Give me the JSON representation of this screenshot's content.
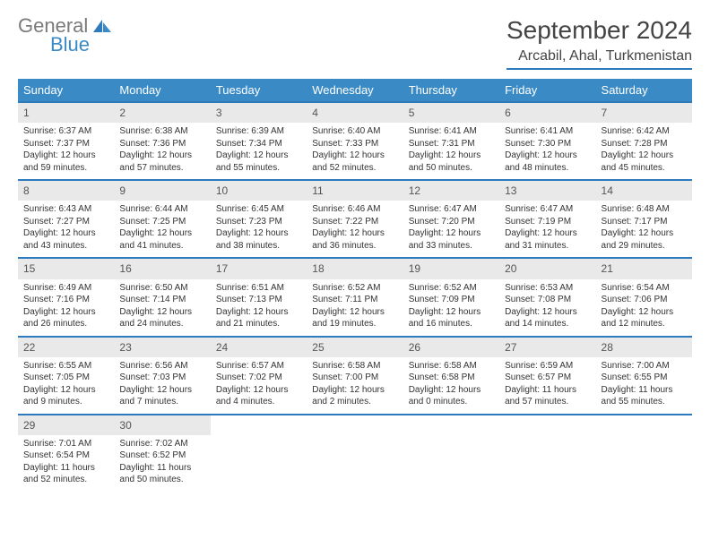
{
  "logo": {
    "line1": "General",
    "line2": "Blue"
  },
  "header": {
    "title": "September 2024",
    "location": "Arcabil, Ahal, Turkmenistan"
  },
  "colors": {
    "brand_blue": "#3a8ac6",
    "rule_blue": "#2d7bbd",
    "day_num_bg": "#e9e9e9",
    "text_gray": "#7a7a7a",
    "body_text": "#333333"
  },
  "weekdays": [
    "Sunday",
    "Monday",
    "Tuesday",
    "Wednesday",
    "Thursday",
    "Friday",
    "Saturday"
  ],
  "days": [
    {
      "n": "1",
      "sunrise": "6:37 AM",
      "sunset": "7:37 PM",
      "daylight": "12 hours and 59 minutes."
    },
    {
      "n": "2",
      "sunrise": "6:38 AM",
      "sunset": "7:36 PM",
      "daylight": "12 hours and 57 minutes."
    },
    {
      "n": "3",
      "sunrise": "6:39 AM",
      "sunset": "7:34 PM",
      "daylight": "12 hours and 55 minutes."
    },
    {
      "n": "4",
      "sunrise": "6:40 AM",
      "sunset": "7:33 PM",
      "daylight": "12 hours and 52 minutes."
    },
    {
      "n": "5",
      "sunrise": "6:41 AM",
      "sunset": "7:31 PM",
      "daylight": "12 hours and 50 minutes."
    },
    {
      "n": "6",
      "sunrise": "6:41 AM",
      "sunset": "7:30 PM",
      "daylight": "12 hours and 48 minutes."
    },
    {
      "n": "7",
      "sunrise": "6:42 AM",
      "sunset": "7:28 PM",
      "daylight": "12 hours and 45 minutes."
    },
    {
      "n": "8",
      "sunrise": "6:43 AM",
      "sunset": "7:27 PM",
      "daylight": "12 hours and 43 minutes."
    },
    {
      "n": "9",
      "sunrise": "6:44 AM",
      "sunset": "7:25 PM",
      "daylight": "12 hours and 41 minutes."
    },
    {
      "n": "10",
      "sunrise": "6:45 AM",
      "sunset": "7:23 PM",
      "daylight": "12 hours and 38 minutes."
    },
    {
      "n": "11",
      "sunrise": "6:46 AM",
      "sunset": "7:22 PM",
      "daylight": "12 hours and 36 minutes."
    },
    {
      "n": "12",
      "sunrise": "6:47 AM",
      "sunset": "7:20 PM",
      "daylight": "12 hours and 33 minutes."
    },
    {
      "n": "13",
      "sunrise": "6:47 AM",
      "sunset": "7:19 PM",
      "daylight": "12 hours and 31 minutes."
    },
    {
      "n": "14",
      "sunrise": "6:48 AM",
      "sunset": "7:17 PM",
      "daylight": "12 hours and 29 minutes."
    },
    {
      "n": "15",
      "sunrise": "6:49 AM",
      "sunset": "7:16 PM",
      "daylight": "12 hours and 26 minutes."
    },
    {
      "n": "16",
      "sunrise": "6:50 AM",
      "sunset": "7:14 PM",
      "daylight": "12 hours and 24 minutes."
    },
    {
      "n": "17",
      "sunrise": "6:51 AM",
      "sunset": "7:13 PM",
      "daylight": "12 hours and 21 minutes."
    },
    {
      "n": "18",
      "sunrise": "6:52 AM",
      "sunset": "7:11 PM",
      "daylight": "12 hours and 19 minutes."
    },
    {
      "n": "19",
      "sunrise": "6:52 AM",
      "sunset": "7:09 PM",
      "daylight": "12 hours and 16 minutes."
    },
    {
      "n": "20",
      "sunrise": "6:53 AM",
      "sunset": "7:08 PM",
      "daylight": "12 hours and 14 minutes."
    },
    {
      "n": "21",
      "sunrise": "6:54 AM",
      "sunset": "7:06 PM",
      "daylight": "12 hours and 12 minutes."
    },
    {
      "n": "22",
      "sunrise": "6:55 AM",
      "sunset": "7:05 PM",
      "daylight": "12 hours and 9 minutes."
    },
    {
      "n": "23",
      "sunrise": "6:56 AM",
      "sunset": "7:03 PM",
      "daylight": "12 hours and 7 minutes."
    },
    {
      "n": "24",
      "sunrise": "6:57 AM",
      "sunset": "7:02 PM",
      "daylight": "12 hours and 4 minutes."
    },
    {
      "n": "25",
      "sunrise": "6:58 AM",
      "sunset": "7:00 PM",
      "daylight": "12 hours and 2 minutes."
    },
    {
      "n": "26",
      "sunrise": "6:58 AM",
      "sunset": "6:58 PM",
      "daylight": "12 hours and 0 minutes."
    },
    {
      "n": "27",
      "sunrise": "6:59 AM",
      "sunset": "6:57 PM",
      "daylight": "11 hours and 57 minutes."
    },
    {
      "n": "28",
      "sunrise": "7:00 AM",
      "sunset": "6:55 PM",
      "daylight": "11 hours and 55 minutes."
    },
    {
      "n": "29",
      "sunrise": "7:01 AM",
      "sunset": "6:54 PM",
      "daylight": "11 hours and 52 minutes."
    },
    {
      "n": "30",
      "sunrise": "7:02 AM",
      "sunset": "6:52 PM",
      "daylight": "11 hours and 50 minutes."
    }
  ],
  "labels": {
    "sunrise": "Sunrise: ",
    "sunset": "Sunset: ",
    "daylight": "Daylight: "
  }
}
